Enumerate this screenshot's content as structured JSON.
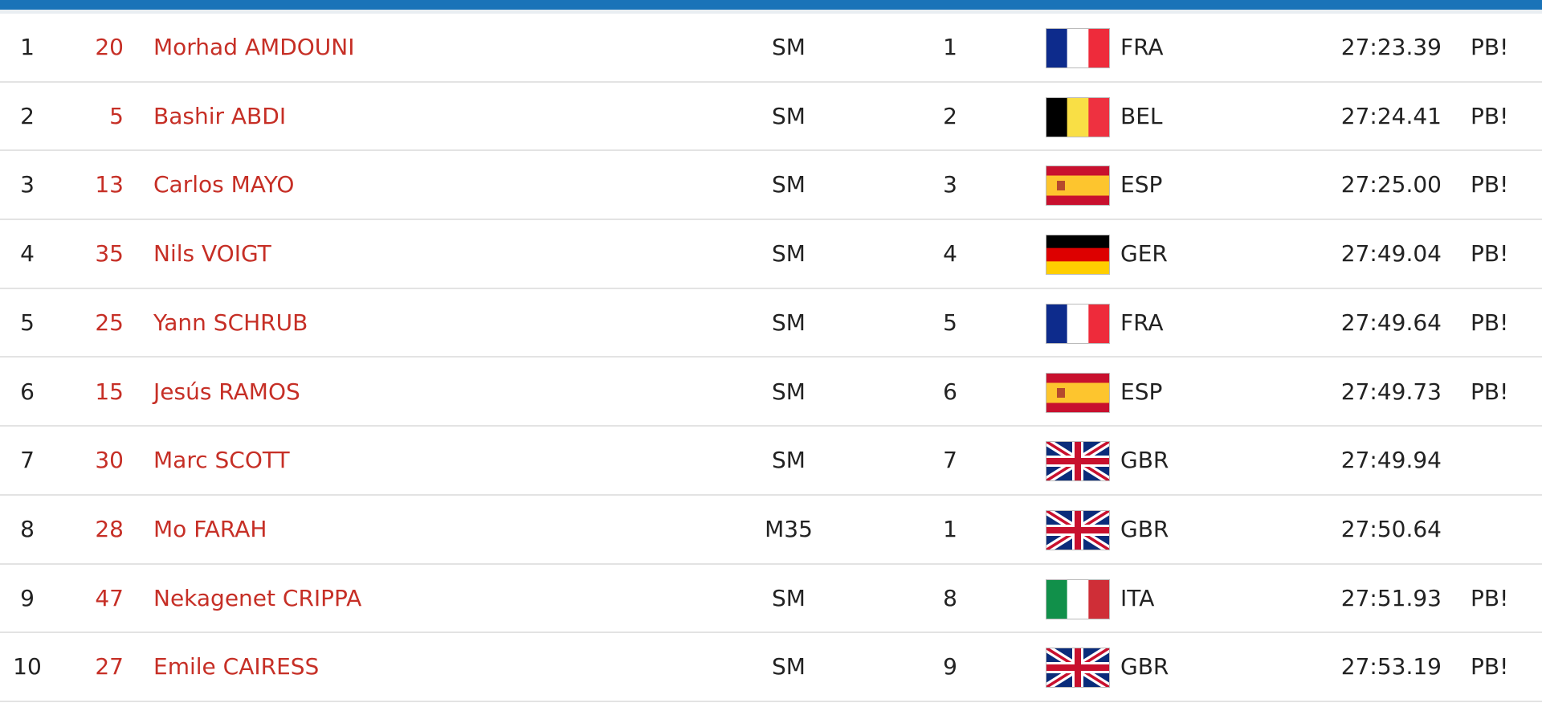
{
  "results": {
    "rows": [
      {
        "pos": "1",
        "bib": "20",
        "name": "Morhad AMDOUNI",
        "category": "SM",
        "cat_rank": "1",
        "country": "FRA",
        "time": "27:23.39",
        "note": "PB!"
      },
      {
        "pos": "2",
        "bib": "5",
        "name": "Bashir ABDI",
        "category": "SM",
        "cat_rank": "2",
        "country": "BEL",
        "time": "27:24.41",
        "note": "PB!"
      },
      {
        "pos": "3",
        "bib": "13",
        "name": "Carlos MAYO",
        "category": "SM",
        "cat_rank": "3",
        "country": "ESP",
        "time": "27:25.00",
        "note": "PB!"
      },
      {
        "pos": "4",
        "bib": "35",
        "name": "Nils VOIGT",
        "category": "SM",
        "cat_rank": "4",
        "country": "GER",
        "time": "27:49.04",
        "note": "PB!"
      },
      {
        "pos": "5",
        "bib": "25",
        "name": "Yann SCHRUB",
        "category": "SM",
        "cat_rank": "5",
        "country": "FRA",
        "time": "27:49.64",
        "note": "PB!"
      },
      {
        "pos": "6",
        "bib": "15",
        "name": "Jesús RAMOS",
        "category": "SM",
        "cat_rank": "6",
        "country": "ESP",
        "time": "27:49.73",
        "note": "PB!"
      },
      {
        "pos": "7",
        "bib": "30",
        "name": "Marc SCOTT",
        "category": "SM",
        "cat_rank": "7",
        "country": "GBR",
        "time": "27:49.94"
      },
      {
        "pos": "8",
        "bib": "28",
        "name": "Mo FARAH",
        "category": "M35",
        "cat_rank": "1",
        "country": "GBR",
        "time": "27:50.64"
      },
      {
        "pos": "9",
        "bib": "47",
        "name": "Nekagenet CRIPPA",
        "category": "SM",
        "cat_rank": "8",
        "country": "ITA",
        "time": "27:51.93",
        "note": "PB!"
      },
      {
        "pos": "10",
        "bib": "27",
        "name": "Emile CAIRESS",
        "category": "SM",
        "cat_rank": "9",
        "country": "GBR",
        "time": "27:53.19",
        "note": "PB!"
      }
    ]
  }
}
